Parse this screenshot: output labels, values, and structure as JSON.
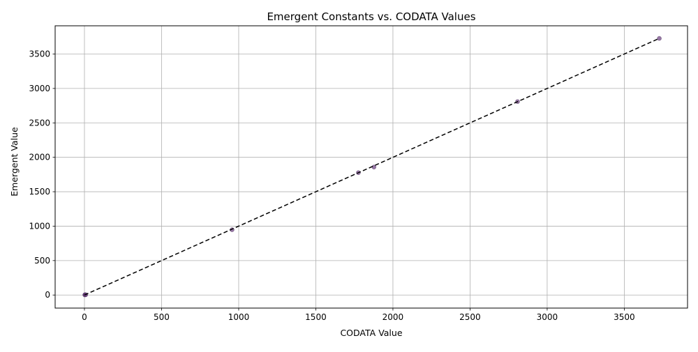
{
  "chart_data": {
    "type": "scatter",
    "title": "Emergent Constants vs. CODATA Values",
    "xlabel": "CODATA Value",
    "ylabel": "Emergent Value",
    "xlim": [
      -190,
      3910
    ],
    "ylim": [
      -190,
      3910
    ],
    "x_ticks": [
      "0",
      "500",
      "1000",
      "1500",
      "2000",
      "2500",
      "3000",
      "3500"
    ],
    "y_ticks": [
      "0",
      "500",
      "1000",
      "1500",
      "2000",
      "2500",
      "3000",
      "3500"
    ],
    "grid": true,
    "legend": "none",
    "reference_line": {
      "style": "dashed",
      "color": "#000000",
      "x": [
        0,
        3727
      ],
      "y": [
        0,
        3727
      ]
    },
    "point_color": "#6a3d7f",
    "points": [
      {
        "x": 2,
        "y": 2
      },
      {
        "x": 5,
        "y": 4
      },
      {
        "x": 8,
        "y": 3
      },
      {
        "x": 957,
        "y": 948
      },
      {
        "x": 1776,
        "y": 1777
      },
      {
        "x": 1877,
        "y": 1858
      },
      {
        "x": 2808,
        "y": 2809
      },
      {
        "x": 3727,
        "y": 3727
      }
    ]
  }
}
